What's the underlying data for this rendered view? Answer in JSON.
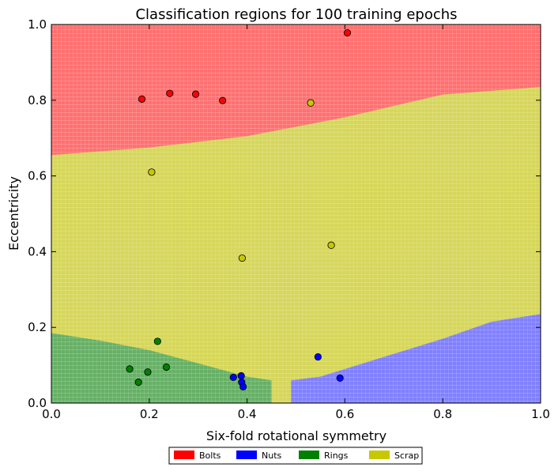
{
  "chart_data": {
    "type": "scatter",
    "title": "Classification regions for 100 training epochs",
    "xlabel": "Six-fold rotational symmetry",
    "ylabel": "Eccentricity",
    "xlim": [
      0.0,
      1.0
    ],
    "ylim": [
      0.0,
      1.0
    ],
    "xticks": [
      "0.0",
      "0.2",
      "0.4",
      "0.6",
      "0.8",
      "1.0"
    ],
    "yticks": [
      "0.0",
      "0.2",
      "0.4",
      "0.6",
      "0.8",
      "1.0"
    ],
    "legend_position": "bottom-center, below plot",
    "grid": false,
    "legend": [
      {
        "label": "Bolts",
        "color": "#ff0000"
      },
      {
        "label": "Nuts",
        "color": "#0000ff"
      },
      {
        "label": "Rings",
        "color": "#008000"
      },
      {
        "label": "Scrap",
        "color": "#c8c800"
      }
    ],
    "regions": {
      "background": "Scrap",
      "colors": {
        "Bolts": "#ff7070",
        "Nuts": "#8080ff",
        "Rings": "#66b066",
        "Scrap": "#d6d65a"
      },
      "boundaries": {
        "bolts_lower_edge": [
          [
            0.0,
            0.655
          ],
          [
            0.2,
            0.675
          ],
          [
            0.4,
            0.705
          ],
          [
            0.6,
            0.755
          ],
          [
            0.8,
            0.815
          ],
          [
            1.0,
            0.835
          ]
        ],
        "rings_upper_edge": [
          [
            0.0,
            0.185
          ],
          [
            0.1,
            0.165
          ],
          [
            0.2,
            0.14
          ],
          [
            0.3,
            0.105
          ],
          [
            0.4,
            0.07
          ],
          [
            0.45,
            0.06
          ]
        ],
        "nuts_upper_edge": [
          [
            0.49,
            0.06
          ],
          [
            0.55,
            0.07
          ],
          [
            0.65,
            0.11
          ],
          [
            0.8,
            0.17
          ],
          [
            0.9,
            0.215
          ],
          [
            1.0,
            0.235
          ]
        ]
      }
    },
    "series": [
      {
        "name": "Bolts",
        "color": "#ff0000",
        "points": [
          [
            0.185,
            0.803
          ],
          [
            0.242,
            0.818
          ],
          [
            0.295,
            0.816
          ],
          [
            0.35,
            0.799
          ],
          [
            0.605,
            0.978
          ]
        ]
      },
      {
        "name": "Nuts",
        "color": "#0000ff",
        "points": [
          [
            0.372,
            0.068
          ],
          [
            0.388,
            0.072
          ],
          [
            0.389,
            0.055
          ],
          [
            0.392,
            0.043
          ],
          [
            0.545,
            0.122
          ],
          [
            0.59,
            0.066
          ]
        ]
      },
      {
        "name": "Rings",
        "color": "#008000",
        "points": [
          [
            0.16,
            0.09
          ],
          [
            0.178,
            0.055
          ],
          [
            0.197,
            0.082
          ],
          [
            0.217,
            0.163
          ],
          [
            0.235,
            0.095
          ]
        ]
      },
      {
        "name": "Scrap",
        "color": "#c8c800",
        "points": [
          [
            0.205,
            0.61
          ],
          [
            0.39,
            0.383
          ],
          [
            0.53,
            0.793
          ],
          [
            0.572,
            0.417
          ]
        ]
      }
    ]
  }
}
